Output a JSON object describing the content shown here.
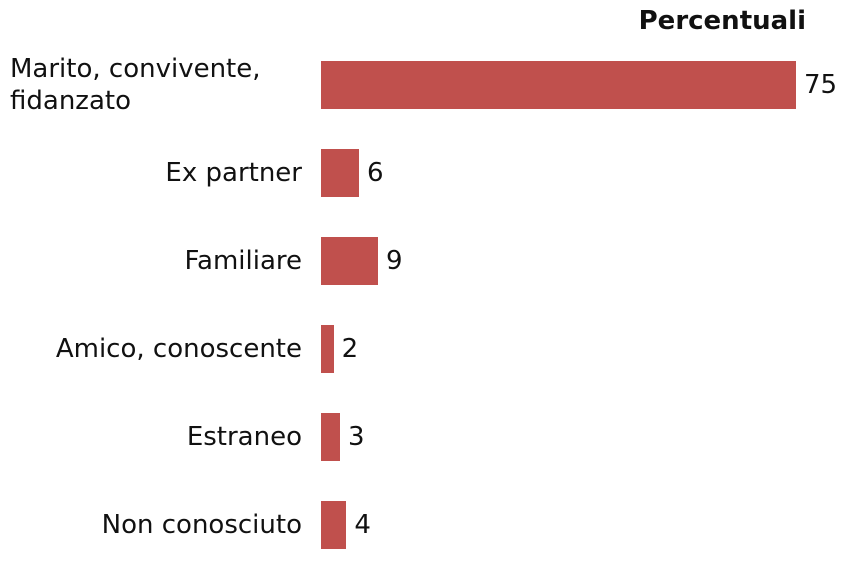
{
  "chart_data": {
    "type": "bar",
    "orientation": "horizontal",
    "title": "Percentuali",
    "categories": [
      "Marito, convivente, fidanzato",
      "Ex partner",
      "Familiare",
      "Amico, conoscente",
      "Estraneo",
      "Non conosciuto"
    ],
    "values": [
      75,
      6,
      9,
      2,
      3,
      4
    ],
    "color": "#c0504d"
  }
}
